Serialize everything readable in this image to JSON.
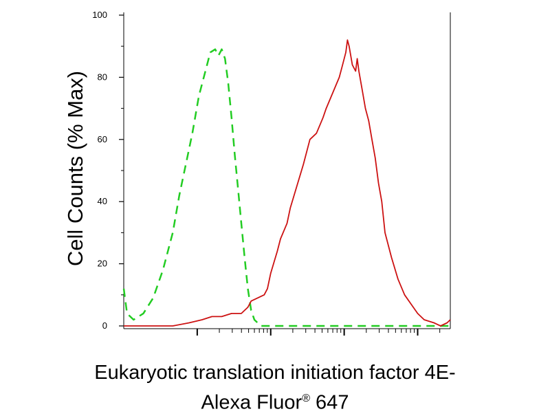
{
  "chart_data": {
    "type": "line",
    "xscale": "log",
    "ylabel": "Cell Counts (% Max)",
    "xlabel_line1": "Eukaryotic translation initiation factor 4E-",
    "xlabel_line2": "Alexa Fluor",
    "xlabel_reg": "®",
    "xlabel_line2_end": " 647",
    "ylim": [
      0,
      100
    ],
    "yticks": [
      0,
      20,
      40,
      60,
      80,
      100
    ],
    "grid": false,
    "series": [
      {
        "style": "dashed",
        "color": "#22cc22",
        "points": [
          [
            0.0,
            12
          ],
          [
            0.01,
            4
          ],
          [
            0.03,
            2
          ],
          [
            0.06,
            4
          ],
          [
            0.09,
            9
          ],
          [
            0.12,
            18
          ],
          [
            0.15,
            30
          ],
          [
            0.17,
            42
          ],
          [
            0.19,
            52
          ],
          [
            0.21,
            62
          ],
          [
            0.23,
            74
          ],
          [
            0.25,
            82
          ],
          [
            0.265,
            88
          ],
          [
            0.28,
            89
          ],
          [
            0.29,
            87
          ],
          [
            0.3,
            89
          ],
          [
            0.31,
            86
          ],
          [
            0.32,
            78
          ],
          [
            0.33,
            67
          ],
          [
            0.34,
            55
          ],
          [
            0.35,
            44
          ],
          [
            0.36,
            33
          ],
          [
            0.37,
            22
          ],
          [
            0.38,
            12
          ],
          [
            0.39,
            5
          ],
          [
            0.4,
            2
          ],
          [
            0.42,
            0
          ],
          [
            1.0,
            0
          ]
        ]
      },
      {
        "style": "solid",
        "color": "#cc1111",
        "points": [
          [
            0.0,
            0
          ],
          [
            0.15,
            0
          ],
          [
            0.2,
            1
          ],
          [
            0.24,
            2
          ],
          [
            0.27,
            3
          ],
          [
            0.3,
            3
          ],
          [
            0.33,
            4
          ],
          [
            0.36,
            4
          ],
          [
            0.38,
            6
          ],
          [
            0.39,
            8
          ],
          [
            0.41,
            9
          ],
          [
            0.43,
            10
          ],
          [
            0.44,
            12
          ],
          [
            0.45,
            17
          ],
          [
            0.47,
            24
          ],
          [
            0.48,
            28
          ],
          [
            0.5,
            33
          ],
          [
            0.51,
            38
          ],
          [
            0.53,
            45
          ],
          [
            0.55,
            52
          ],
          [
            0.57,
            60
          ],
          [
            0.59,
            62
          ],
          [
            0.61,
            67
          ],
          [
            0.62,
            70
          ],
          [
            0.64,
            75
          ],
          [
            0.66,
            80
          ],
          [
            0.67,
            84
          ],
          [
            0.68,
            88
          ],
          [
            0.685,
            92
          ],
          [
            0.69,
            90
          ],
          [
            0.7,
            84
          ],
          [
            0.71,
            82
          ],
          [
            0.715,
            86
          ],
          [
            0.72,
            82
          ],
          [
            0.73,
            76
          ],
          [
            0.74,
            70
          ],
          [
            0.75,
            66
          ],
          [
            0.76,
            60
          ],
          [
            0.77,
            54
          ],
          [
            0.78,
            46
          ],
          [
            0.79,
            40
          ],
          [
            0.8,
            30
          ],
          [
            0.82,
            22
          ],
          [
            0.84,
            15
          ],
          [
            0.86,
            10
          ],
          [
            0.88,
            7
          ],
          [
            0.9,
            4
          ],
          [
            0.92,
            2
          ],
          [
            0.95,
            1
          ],
          [
            0.97,
            0
          ],
          [
            0.99,
            1
          ],
          [
            1.0,
            2
          ]
        ]
      }
    ]
  }
}
